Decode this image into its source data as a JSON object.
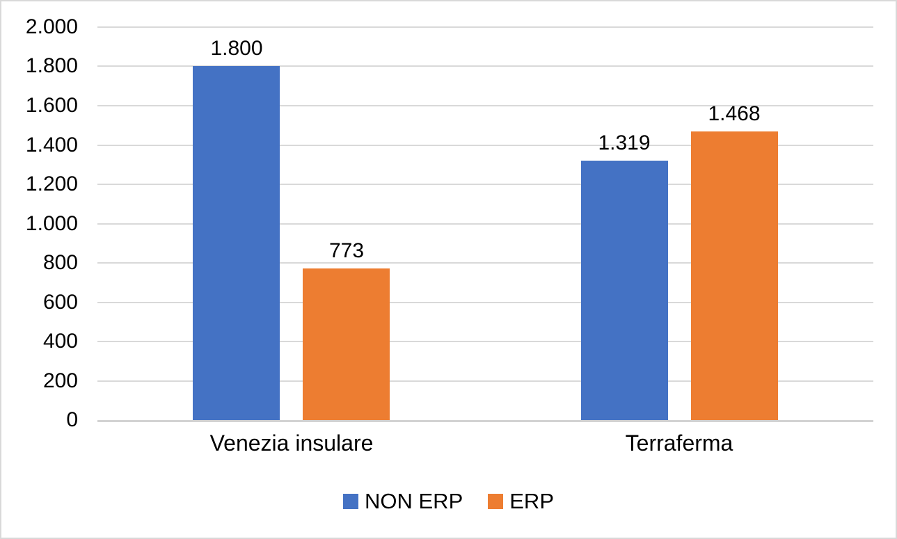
{
  "chart_data": {
    "type": "bar",
    "categories": [
      "Venezia insulare",
      "Terraferma"
    ],
    "series": [
      {
        "name": "NON ERP",
        "color": "#4472C4",
        "values": [
          1800,
          1319
        ],
        "value_labels": [
          "1.800",
          "1.319"
        ]
      },
      {
        "name": "ERP",
        "color": "#ED7D31",
        "values": [
          773,
          1468
        ],
        "value_labels": [
          "773",
          "1.468"
        ]
      }
    ],
    "ylim": [
      0,
      2000
    ],
    "ytick_step": 200,
    "ytick_labels": [
      "0",
      "200",
      "400",
      "600",
      "800",
      "1.000",
      "1.200",
      "1.400",
      "1.600",
      "1.800",
      "2.000"
    ],
    "grid": true,
    "legend_position": "bottom",
    "legend_entries": [
      "NON ERP",
      "ERP"
    ]
  },
  "colors": {
    "series_non_erp": "#4472C4",
    "series_erp": "#ED7D31",
    "gridline": "#D9D9D9",
    "axis_line": "#D2D2D2",
    "border": "#D9D9D9",
    "text": "#000000",
    "background": "#FFFFFF"
  }
}
